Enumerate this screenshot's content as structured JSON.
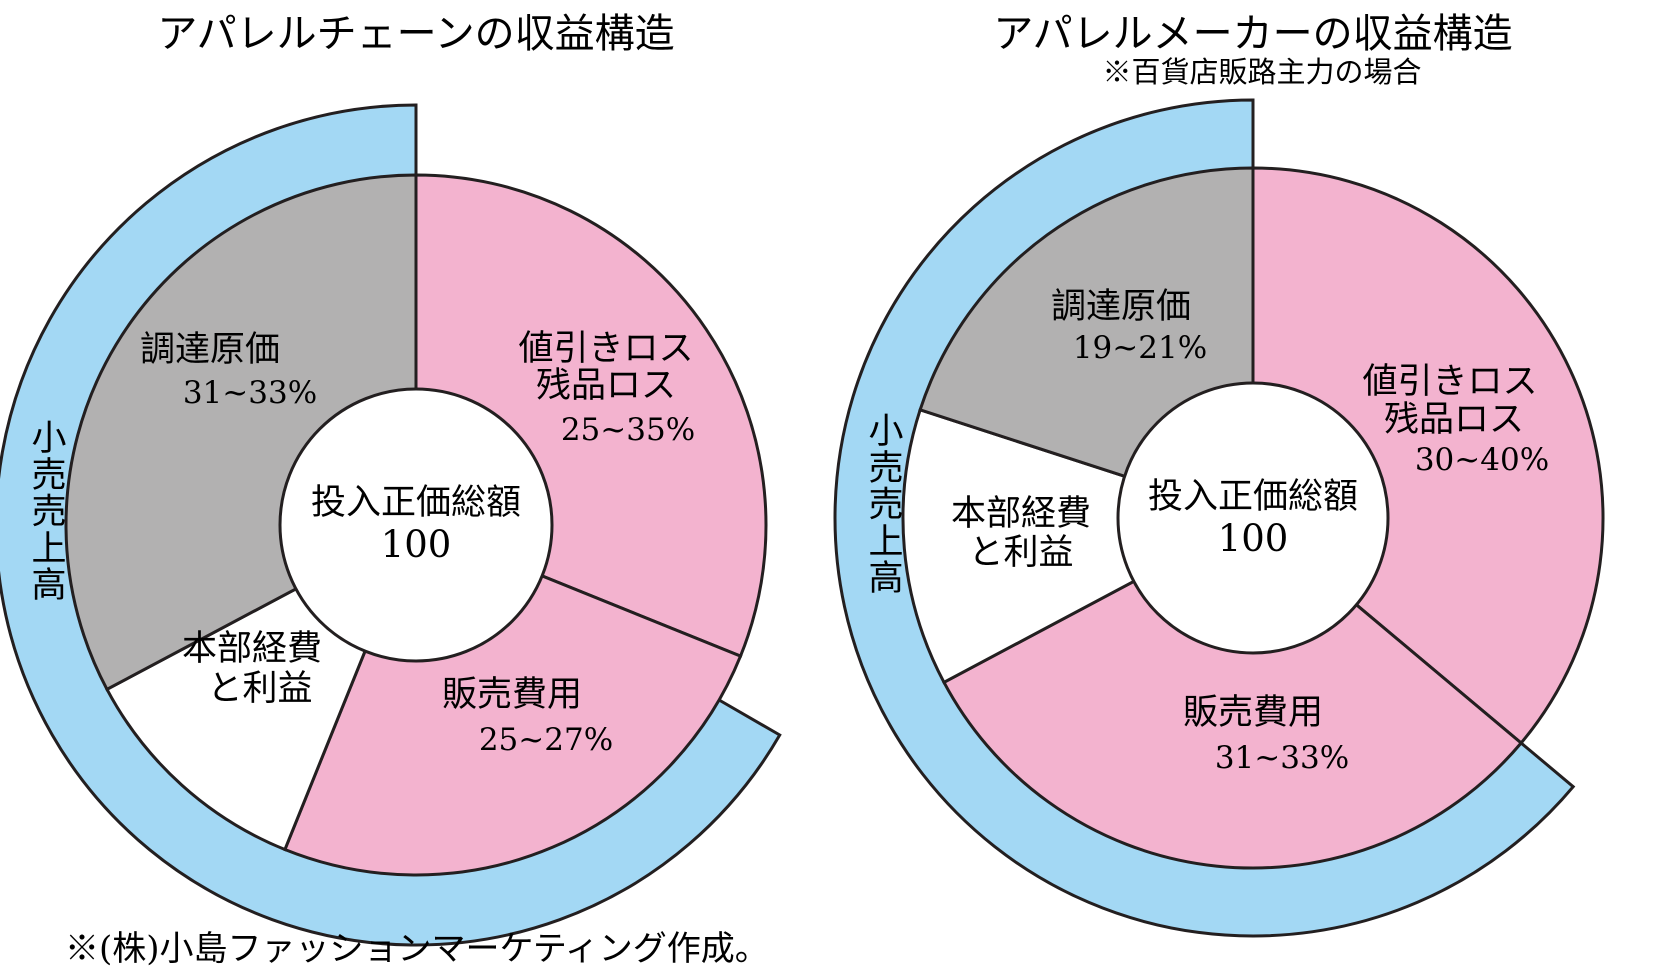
{
  "chart_data": [
    {
      "type": "pie",
      "title": "アパレルチェーンの収益構造",
      "subtitle": "",
      "outer_ring": {
        "label": "小売売上高",
        "color": "#a3d8f4",
        "start_deg": 0,
        "end_deg": 240
      },
      "center": {
        "label": "投入正価総額",
        "value": "100"
      },
      "segments": [
        {
          "label_lines": [
            "値引きロス",
            "残品ロス"
          ],
          "range": "25~35%",
          "start_deg": 0,
          "end_deg": 112,
          "color": "#f3b3cf"
        },
        {
          "label_lines": [
            "販売費用"
          ],
          "range": "25~27%",
          "start_deg": 112,
          "end_deg": 202,
          "color": "#f3b3cf"
        },
        {
          "label_lines": [
            "本部経費",
            "と利益"
          ],
          "range": "",
          "start_deg": 202,
          "end_deg": 242,
          "color": "#ffffff"
        },
        {
          "label_lines": [
            "調達原価"
          ],
          "range": "31~33%",
          "start_deg": 242,
          "end_deg": 360,
          "color": "#b2b1b1"
        }
      ]
    },
    {
      "type": "pie",
      "title": "アパレルメーカーの収益構造",
      "subtitle": "※百貨店販路主力の場合",
      "outer_ring": {
        "label": "小売売上高",
        "color": "#a3d8f4",
        "start_deg": 0,
        "end_deg": 230
      },
      "center": {
        "label": "投入正価総額",
        "value": "100"
      },
      "segments": [
        {
          "label_lines": [
            "値引きロス",
            "残品ロス"
          ],
          "range": "30~40%",
          "start_deg": 0,
          "end_deg": 130,
          "color": "#f3b3cf"
        },
        {
          "label_lines": [
            "販売費用"
          ],
          "range": "31~33%",
          "start_deg": 130,
          "end_deg": 242,
          "color": "#f3b3cf"
        },
        {
          "label_lines": [
            "本部経費",
            "と利益"
          ],
          "range": "",
          "start_deg": 242,
          "end_deg": 288,
          "color": "#ffffff"
        },
        {
          "label_lines": [
            "調達原価"
          ],
          "range": "19~21%",
          "start_deg": 288,
          "end_deg": 360,
          "color": "#b2b1b1"
        }
      ]
    }
  ],
  "source": "※(株)小島ファッションマーケティング作成。"
}
